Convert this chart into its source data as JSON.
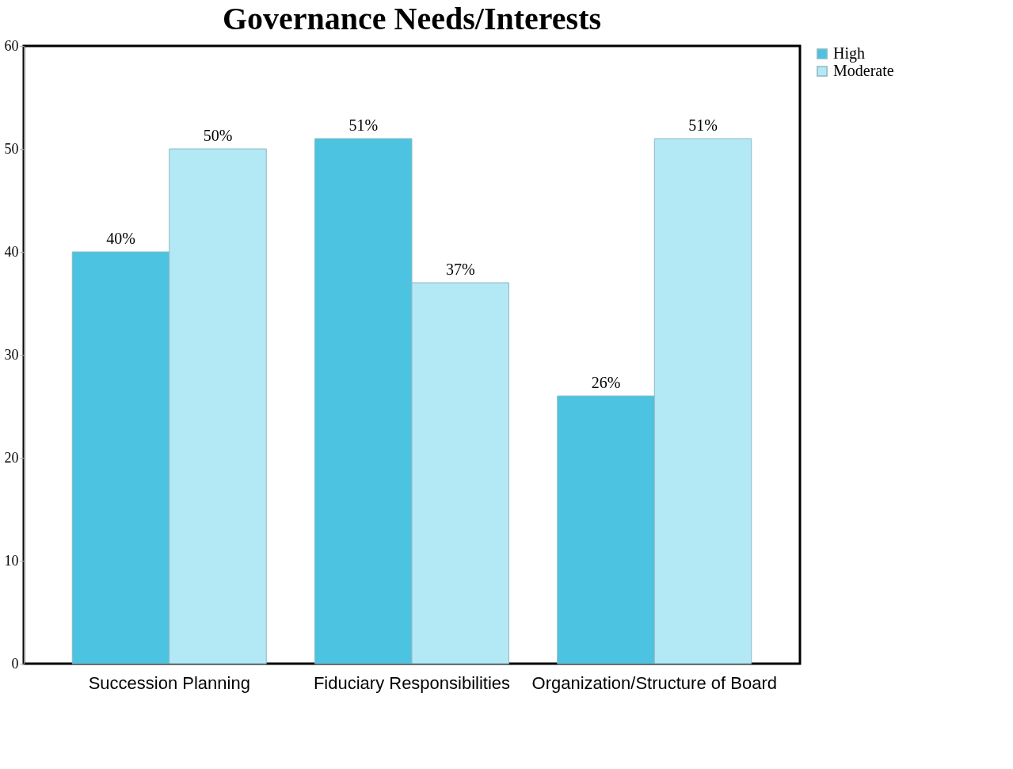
{
  "chart_data": {
    "type": "bar",
    "title": "Governance Needs/Interests",
    "categories": [
      "Succession Planning",
      "Fiduciary Responsibilities",
      "Organization/Structure of Board"
    ],
    "series": [
      {
        "name": "High",
        "color": "#4cc3e0",
        "values": [
          40,
          51,
          26
        ],
        "value_labels": [
          "40%",
          "51%",
          "26%"
        ]
      },
      {
        "name": "Moderate",
        "color": "#b3e8f5",
        "values": [
          50,
          37,
          51
        ],
        "value_labels": [
          "50%",
          "37%",
          "51%"
        ]
      }
    ],
    "ylim": [
      0,
      60
    ],
    "yticks": [
      0,
      10,
      20,
      30,
      40,
      50,
      60
    ],
    "grid": false,
    "legend": "right"
  }
}
